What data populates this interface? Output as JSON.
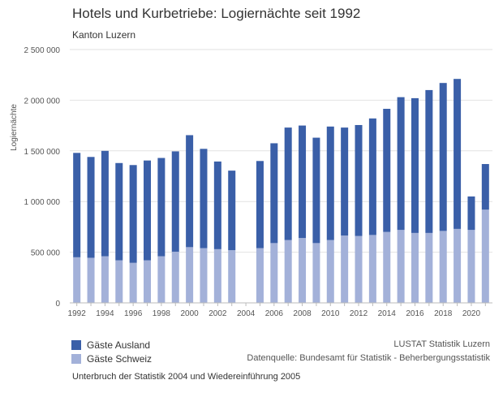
{
  "colors": {
    "auslaender": "#3a5fa8",
    "schweiz": "#a3b1d9",
    "grid": "#e2e2e2",
    "text": "#333333"
  },
  "legend": {
    "auslaender_label": "Gäste Ausland",
    "schweiz_label": "Gäste Schweiz"
  },
  "source": {
    "line1": "LUSTAT Statistik Luzern",
    "line2": "Datenquelle: Bundesamt für Statistik - Beherbergungsstatistik"
  },
  "footnote": "Unterbruch der Statistik 2004 und Wiedereinführung 2005",
  "chart_data": {
    "type": "bar",
    "stacked": true,
    "title": "Hotels und Kurbetriebe: Logiernächte seit 1992",
    "subtitle": "Kanton Luzern",
    "ylabel": "Logiernächte",
    "ylim": [
      0,
      2500000
    ],
    "yticks": [
      0,
      500000,
      1000000,
      1500000,
      2000000,
      2500000
    ],
    "ytick_labels": [
      "0",
      "500 000",
      "1 000 000",
      "1 500 000",
      "2 000 000",
      "2 500 000"
    ],
    "grid": true,
    "legend_position": "bottom-left",
    "categories": [
      1992,
      1993,
      1994,
      1995,
      1996,
      1997,
      1998,
      1999,
      2000,
      2001,
      2002,
      2003,
      2004,
      2005,
      2006,
      2007,
      2008,
      2009,
      2010,
      2011,
      2012,
      2013,
      2014,
      2015,
      2016,
      2017,
      2018,
      2019,
      2020,
      2021
    ],
    "xtick_labels": [
      "1992",
      "1994",
      "1996",
      "1998",
      "2000",
      "2002",
      "2004",
      "2006",
      "2008",
      "2010",
      "2012",
      "2014",
      "2016",
      "2018",
      "2020"
    ],
    "series": [
      {
        "name": "Gäste Schweiz",
        "values": [
          450000,
          445000,
          460000,
          420000,
          395000,
          420000,
          460000,
          505000,
          550000,
          540000,
          530000,
          520000,
          null,
          540000,
          590000,
          620000,
          640000,
          590000,
          620000,
          665000,
          660000,
          670000,
          700000,
          720000,
          690000,
          690000,
          710000,
          730000,
          720000,
          920000
        ]
      },
      {
        "name": "Gäste Ausland",
        "values": [
          1030000,
          995000,
          1040000,
          960000,
          965000,
          985000,
          970000,
          990000,
          1105000,
          980000,
          865000,
          785000,
          null,
          860000,
          985000,
          1110000,
          1110000,
          1040000,
          1120000,
          1065000,
          1095000,
          1150000,
          1215000,
          1310000,
          1330000,
          1410000,
          1460000,
          1480000,
          330000,
          450000
        ]
      }
    ]
  }
}
